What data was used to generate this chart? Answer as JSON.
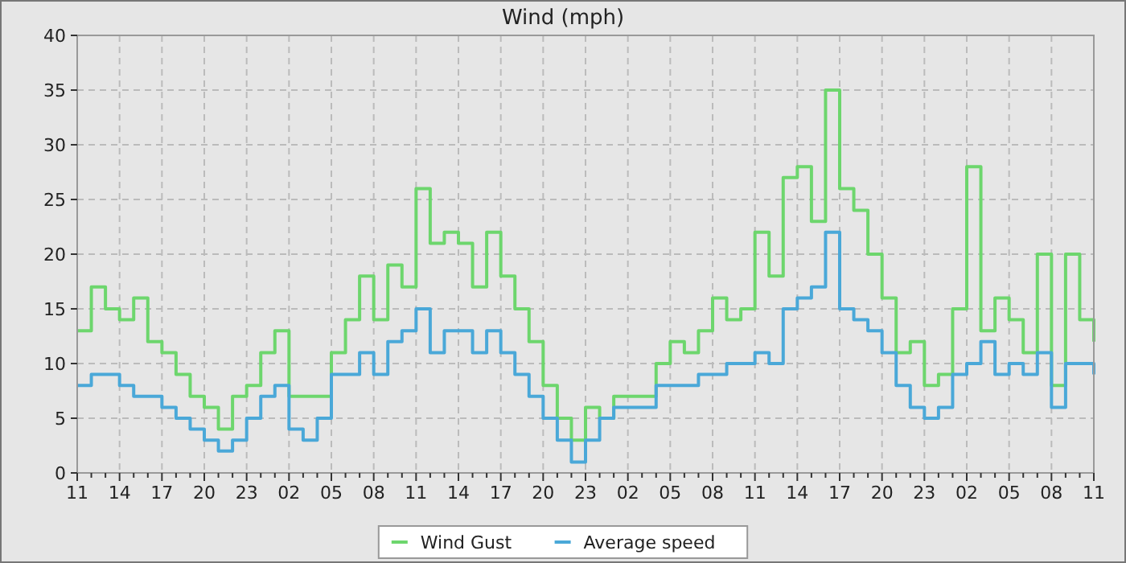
{
  "chart_data": {
    "type": "step",
    "title": "Wind (mph)",
    "categories": [
      "11",
      null,
      null,
      "14",
      null,
      null,
      "17",
      null,
      null,
      "20",
      null,
      null,
      "23",
      null,
      null,
      "02",
      null,
      null,
      "05",
      null,
      null,
      "08",
      null,
      null,
      "11",
      null,
      null,
      "14",
      null,
      null,
      "17",
      null,
      null,
      "20",
      null,
      null,
      "23",
      null,
      null,
      "02",
      null,
      null,
      "05",
      null,
      null,
      "08",
      null,
      null,
      "11",
      null,
      null,
      "14",
      null,
      null,
      "17",
      null,
      null,
      "20",
      null,
      null,
      "23",
      null,
      null,
      "02",
      null,
      null,
      "05",
      null,
      null,
      "08",
      null,
      null,
      "11"
    ],
    "series": [
      {
        "name": "Wind Gust",
        "color": "#6dd66d",
        "values": [
          13,
          17,
          15,
          14,
          16,
          12,
          11,
          9,
          7,
          6,
          4,
          7,
          8,
          11,
          13,
          7,
          7,
          7,
          11,
          14,
          18,
          14,
          19,
          17,
          26,
          21,
          22,
          21,
          17,
          22,
          18,
          15,
          12,
          8,
          5,
          3,
          6,
          5,
          7,
          7,
          7,
          10,
          12,
          11,
          13,
          16,
          14,
          15,
          22,
          18,
          27,
          28,
          23,
          35,
          26,
          24,
          20,
          16,
          11,
          12,
          8,
          9,
          15,
          28,
          13,
          16,
          14,
          11,
          20,
          8,
          20,
          14,
          12
        ]
      },
      {
        "name": "Average speed",
        "color": "#4aa8d8",
        "values": [
          8,
          9,
          9,
          8,
          7,
          7,
          6,
          5,
          4,
          3,
          2,
          3,
          5,
          7,
          8,
          4,
          3,
          5,
          9,
          9,
          11,
          9,
          12,
          13,
          15,
          11,
          13,
          13,
          11,
          13,
          11,
          9,
          7,
          5,
          3,
          1,
          3,
          5,
          6,
          6,
          6,
          8,
          8,
          8,
          9,
          9,
          10,
          10,
          11,
          10,
          15,
          16,
          17,
          22,
          15,
          14,
          13,
          11,
          8,
          6,
          5,
          6,
          9,
          10,
          12,
          9,
          10,
          9,
          11,
          6,
          10,
          10,
          9
        ]
      }
    ],
    "ylim": [
      0,
      40
    ],
    "yticks": [
      0,
      5,
      10,
      15,
      20,
      25,
      30,
      35,
      40
    ],
    "grid": true,
    "legend": "bottom"
  }
}
